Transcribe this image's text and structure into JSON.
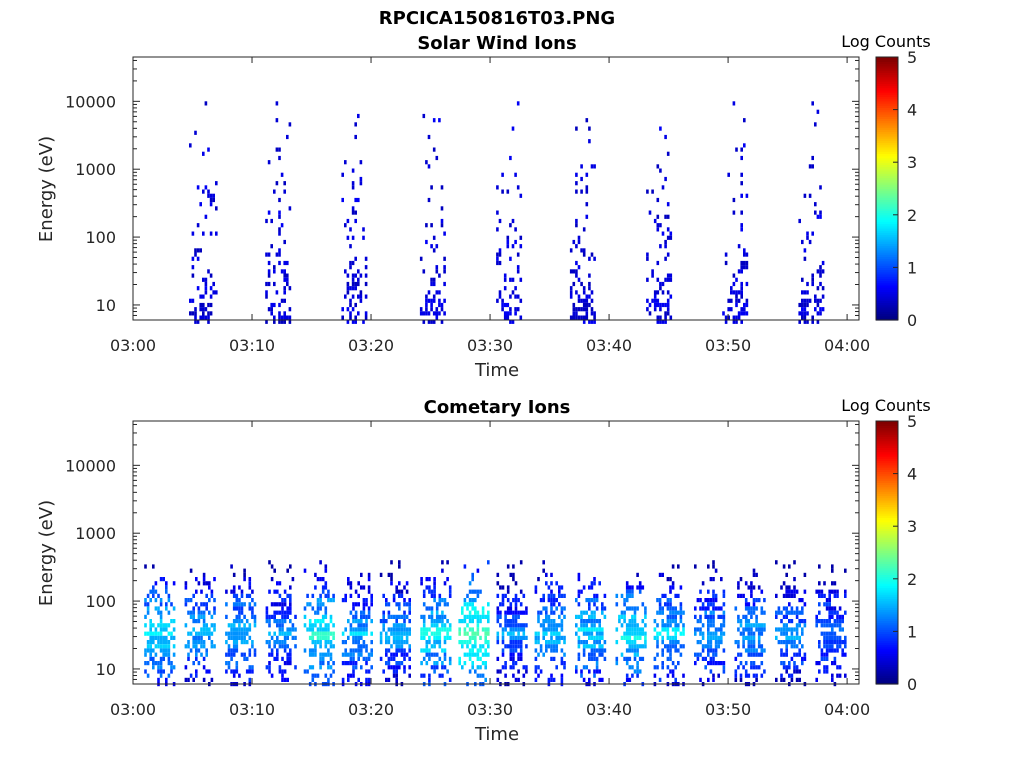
{
  "figure_title": "RPCICA150816T03.PNG",
  "chart_data": [
    {
      "type": "heatmap",
      "title": "Solar Wind Ions",
      "xlabel": "Time",
      "ylabel": "Energy (eV)",
      "x_ticks": [
        "03:00",
        "03:10",
        "03:20",
        "03:30",
        "03:40",
        "03:50",
        "04:00"
      ],
      "x_range_minutes": [
        0,
        61
      ],
      "y_ticks": [
        "10",
        "100",
        "1000",
        "10000"
      ],
      "y_scale": "log",
      "y_range": [
        6,
        45000
      ],
      "colorbar": {
        "label": "Log Counts",
        "ticks": [
          "0",
          "1",
          "2",
          "3",
          "4",
          "5"
        ],
        "range": [
          0,
          5
        ],
        "colormap": "jet"
      },
      "pulse_centers_minutes": [
        5.8,
        12.2,
        18.6,
        25.2,
        31.6,
        37.8,
        44.2,
        50.6,
        57.0
      ],
      "pulse_peak_log_counts": [
        0.6,
        0.6,
        0.6,
        0.6,
        0.6,
        0.6,
        0.6,
        0.6,
        0.6
      ],
      "pulse_energy_range_eV": [
        6,
        10000
      ],
      "grid": false
    },
    {
      "type": "heatmap",
      "title": "Cometary Ions",
      "xlabel": "Time",
      "ylabel": "Energy (eV)",
      "x_ticks": [
        "03:00",
        "03:10",
        "03:20",
        "03:30",
        "03:40",
        "03:50",
        "04:00"
      ],
      "x_range_minutes": [
        0,
        61
      ],
      "y_ticks": [
        "10",
        "100",
        "1000",
        "10000"
      ],
      "y_scale": "log",
      "y_range": [
        6,
        45000
      ],
      "colorbar": {
        "label": "Log Counts",
        "ticks": [
          "0",
          "1",
          "2",
          "3",
          "4",
          "5"
        ],
        "range": [
          0,
          5
        ],
        "colormap": "jet"
      },
      "pulse_centers_minutes": [
        2.2,
        5.6,
        9.0,
        12.4,
        15.6,
        18.8,
        22.0,
        25.4,
        28.6,
        31.8,
        35.0,
        38.4,
        41.8,
        45.0,
        48.4,
        51.8,
        55.2,
        58.6
      ],
      "pulse_peak_log_counts": [
        1.8,
        1.5,
        1.6,
        1.4,
        1.9,
        1.5,
        1.4,
        1.8,
        2.2,
        1.3,
        1.6,
        1.7,
        1.8,
        1.6,
        1.5,
        1.4,
        1.4,
        1.3
      ],
      "pulse_energy_range_eV": [
        6,
        400
      ],
      "grid": false
    }
  ]
}
